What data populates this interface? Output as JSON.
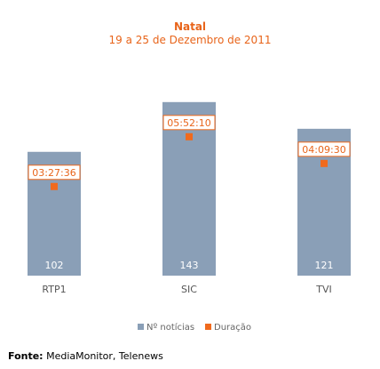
{
  "chart_data": {
    "type": "bar",
    "title": "Natal",
    "subtitle": "19 a 25 de Dezembro de 2011",
    "categories": [
      "RTP1",
      "SIC",
      "TVI"
    ],
    "series": [
      {
        "name": "Nº notícias",
        "values": [
          102,
          143,
          121
        ],
        "color": "#8a9fb7"
      },
      {
        "name": "Duração",
        "values": [
          "03:27:36",
          "05:52:10",
          "04:09:30"
        ],
        "color": "#f06a1d"
      }
    ],
    "ylim": [
      0,
      150
    ],
    "grid": false,
    "legend_position": "bottom-center",
    "colors": {
      "title": "#e8641a",
      "bar": "#8a9fb7",
      "marker": "#f06a1d",
      "axis_label": "#555555"
    }
  },
  "footer": {
    "label": "Fonte:",
    "text": "MediaMonitor, Telenews"
  }
}
